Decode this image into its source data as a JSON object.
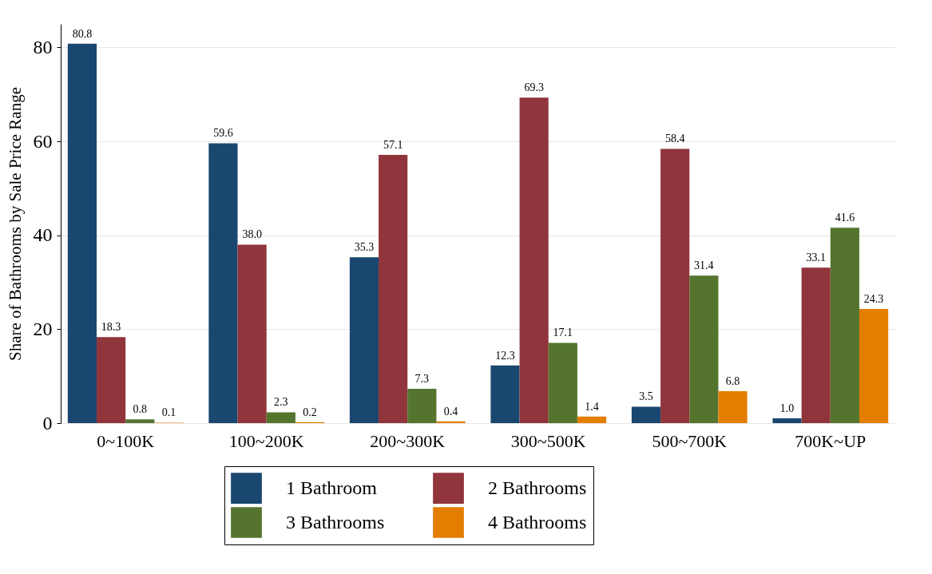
{
  "chart_data": {
    "type": "bar",
    "ylabel": "Share of Bathrooms by Sale Price Range",
    "categories": [
      "0~100K",
      "100~200K",
      "200~300K",
      "300~500K",
      "500~700K",
      "700K~UP"
    ],
    "series": [
      {
        "name": "1 Bathroom",
        "color": "#1a476f",
        "values": [
          80.8,
          59.6,
          35.3,
          12.3,
          3.5,
          1.0
        ],
        "value_labels": [
          "80.8",
          "59.6",
          "35.3",
          "12.3",
          "3.5",
          "1.0"
        ]
      },
      {
        "name": "2 Bathrooms",
        "color": "#90353b",
        "values": [
          18.3,
          38.0,
          57.1,
          69.3,
          58.4,
          33.1
        ],
        "value_labels": [
          "18.3",
          "38.0",
          "57.1",
          "69.3",
          "58.4",
          "33.1"
        ]
      },
      {
        "name": "3 Bathrooms",
        "color": "#55752f",
        "values": [
          0.8,
          2.3,
          7.3,
          17.1,
          31.4,
          41.6
        ],
        "value_labels": [
          "0.8",
          "2.3",
          "7.3",
          "17.1",
          "31.4",
          "41.6"
        ]
      },
      {
        "name": "4 Bathrooms",
        "color": "#e37e00",
        "values": [
          0.1,
          0.2,
          0.4,
          1.4,
          6.8,
          24.3
        ],
        "value_labels": [
          "0.1",
          "0.2",
          "0.4",
          "1.4",
          "6.8",
          "24.3"
        ]
      }
    ],
    "ylim": [
      0,
      85
    ],
    "yticks": [
      0,
      20,
      40,
      60,
      80
    ],
    "grid": "y",
    "legend": "bottom"
  }
}
